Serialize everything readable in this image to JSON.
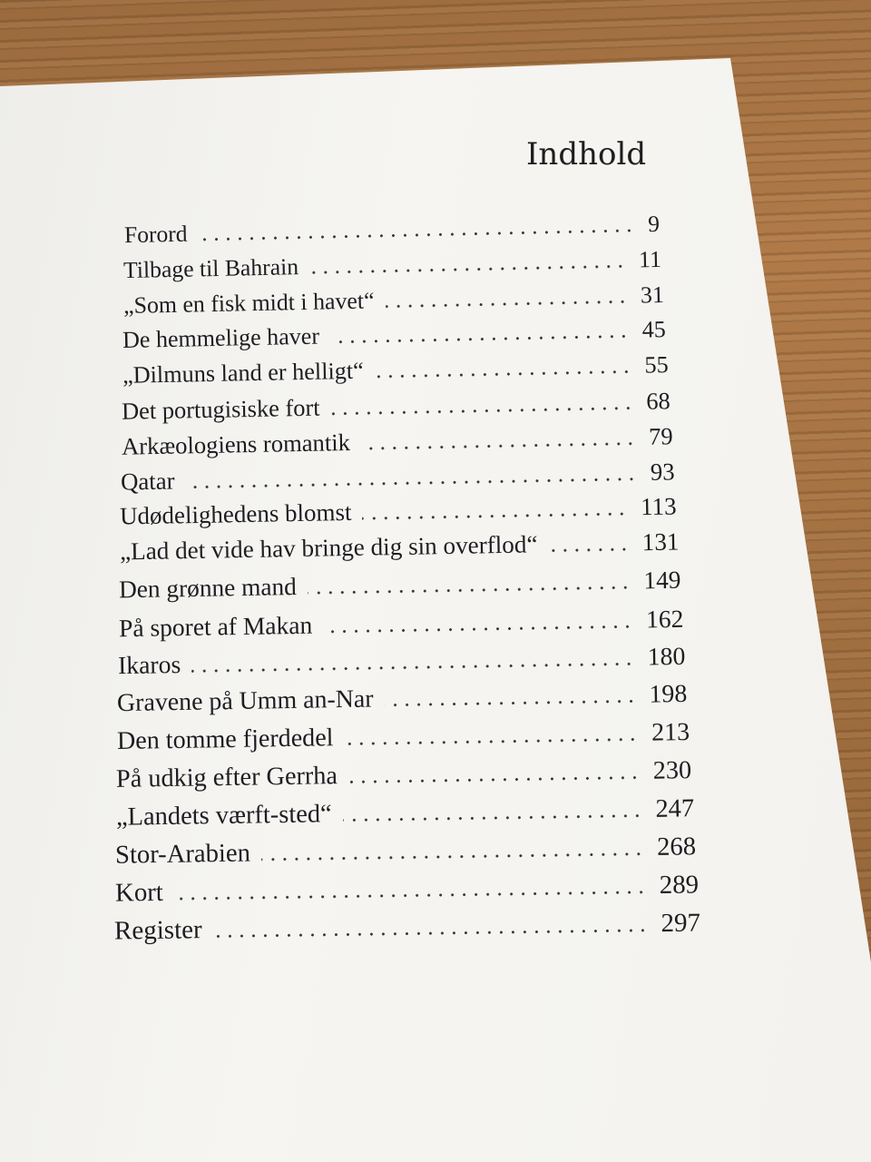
{
  "heading": "Indhold",
  "entries": [
    {
      "title": "Forord",
      "page": "9"
    },
    {
      "title": "Tilbage til Bahrain",
      "page": "11"
    },
    {
      "title": "„Som en fisk midt i havet“",
      "page": "31"
    },
    {
      "title": "De hemmelige haver",
      "page": "45"
    },
    {
      "title": "„Dilmuns land er helligt“",
      "page": "55"
    },
    {
      "title": "Det portugisiske fort",
      "page": "68"
    },
    {
      "title": "Arkæologiens romantik",
      "page": "79"
    },
    {
      "title": "Qatar",
      "page": "93"
    },
    {
      "title": "Udødelighedens blomst",
      "page": "113"
    },
    {
      "title": "„Lad det vide hav bringe dig sin overflod“",
      "page": "131"
    },
    {
      "title": "Den grønne mand",
      "page": "149"
    },
    {
      "title": "På sporet af Makan",
      "page": "162"
    },
    {
      "title": "Ikaros",
      "page": "180"
    },
    {
      "title": "Gravene på Umm an-Nar",
      "page": "198"
    },
    {
      "title": "Den tomme fjerdedel",
      "page": "213"
    },
    {
      "title": "På udkig efter Gerrha",
      "page": "230"
    },
    {
      "title": "„Landets værft-sted“",
      "page": "247"
    },
    {
      "title": "Stor-Arabien",
      "page": "268"
    },
    {
      "title": "Kort",
      "page": "289"
    },
    {
      "title": "Register",
      "page": "297"
    }
  ]
}
